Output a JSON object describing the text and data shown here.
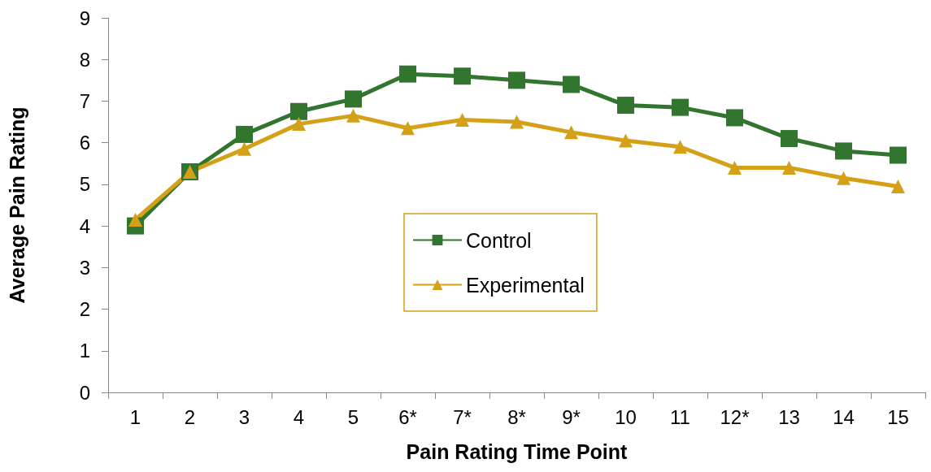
{
  "chart_data": {
    "type": "line",
    "xlabel": "Pain Rating Time Point",
    "ylabel": "Average Pain Rating",
    "categories": [
      "1",
      "2",
      "3",
      "4",
      "5",
      "6*",
      "7*",
      "8*",
      "9*",
      "10",
      "11",
      "12*",
      "13",
      "14",
      "15"
    ],
    "series": [
      {
        "name": "Control",
        "color": "#31752f",
        "marker": "square",
        "values": [
          4.0,
          5.3,
          6.2,
          6.75,
          7.05,
          7.65,
          7.6,
          7.5,
          7.4,
          6.9,
          6.85,
          6.6,
          6.1,
          5.8,
          5.7
        ]
      },
      {
        "name": "Experimental",
        "color": "#d4a017",
        "marker": "triangle",
        "values": [
          4.15,
          5.3,
          5.85,
          6.45,
          6.65,
          6.35,
          6.55,
          6.5,
          6.25,
          6.05,
          5.9,
          5.4,
          5.4,
          5.15,
          4.95
        ]
      }
    ],
    "ylim": [
      0,
      9
    ],
    "yticks": [
      0,
      1,
      2,
      3,
      4,
      5,
      6,
      7,
      8,
      9
    ],
    "grid": false,
    "legend": "center",
    "line_style": "solid"
  }
}
